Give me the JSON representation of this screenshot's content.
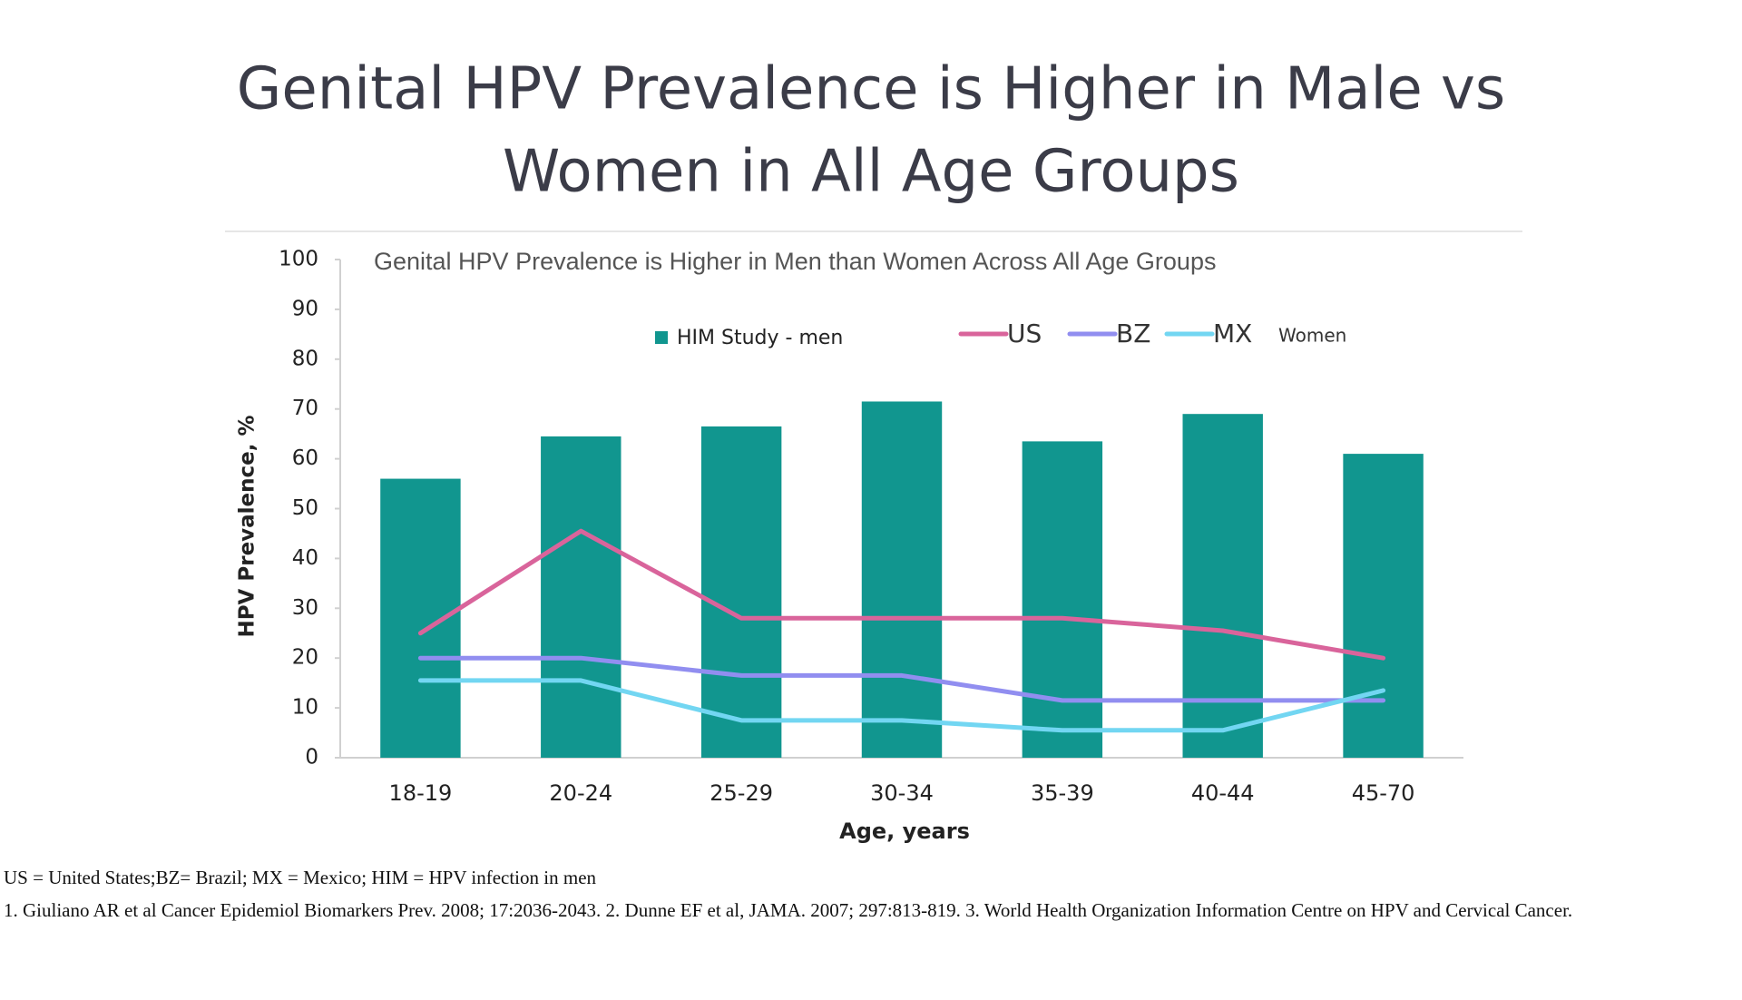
{
  "title": [
    "Genital HPV Prevalence is Higher in Male vs",
    "Women in All Age Groups"
  ],
  "chart_data": {
    "type": "bar",
    "title": "Genital HPV Prevalence is Higher in Men than Women Across All Age Groups",
    "x_label": "Age, years",
    "y_label": "HPV Prevalence, %",
    "categories": [
      "18-19",
      "20-24",
      "25-29",
      "30-34",
      "35-39",
      "40-44",
      "45-70"
    ],
    "series": [
      {
        "name": "HIM Study - men",
        "type": "bar",
        "color": "#11968f",
        "values": [
          56,
          64.5,
          66.5,
          71.5,
          63.5,
          69,
          61
        ]
      },
      {
        "name": "US",
        "type": "line",
        "color": "#d9649b",
        "values": [
          25,
          45.5,
          28,
          28,
          28,
          25.5,
          20
        ]
      },
      {
        "name": "BZ",
        "type": "line",
        "color": "#918ef0",
        "values": [
          20,
          20,
          16.5,
          16.5,
          11.5,
          11.5,
          11.5
        ]
      },
      {
        "name": "MX",
        "type": "line",
        "color": "#72d6f2",
        "values": [
          15.5,
          15.5,
          7.5,
          7.5,
          5.5,
          5.5,
          13.5
        ]
      }
    ],
    "legend_note": "Women",
    "ylim": [
      0,
      100
    ],
    "yticks": [
      0,
      10,
      20,
      30,
      40,
      50,
      60,
      70,
      80,
      90,
      100
    ],
    "grid": false
  },
  "footnotes": [
    "US = United States;BZ= Brazil; MX = Mexico; HIM = HPV infection in men",
    "1. Giuliano AR et al Cancer Epidemiol Biomarkers Prev. 2008; 17:2036-2043. 2. Dunne EF et al, JAMA. 2007; 297:813-819. 3. World Health Organization Information Centre on HPV and Cervical Cancer."
  ]
}
